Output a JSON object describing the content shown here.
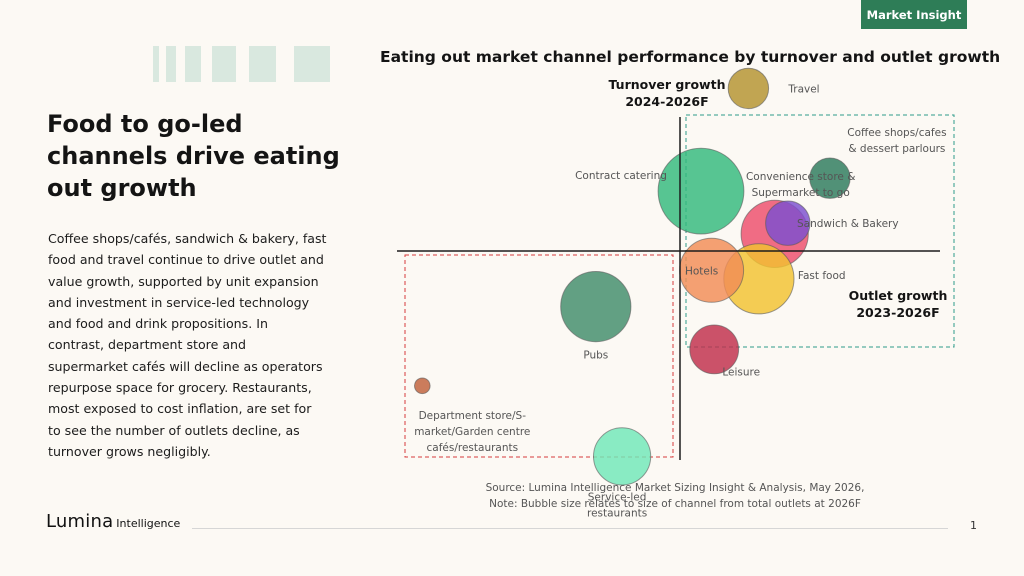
{
  "badge": "Market Insight",
  "headline_lines": [
    "Food to go-led",
    "channels drive eating",
    "out growth"
  ],
  "body_lines": [
    "Coffee shops/cafés, sandwich & bakery, fast",
    "food and travel continue to drive outlet and",
    "value growth, supported by unit expansion",
    "and investment in service-led technology",
    "and food and drink propositions. In",
    "contrast, department store and",
    "supermarket cafés will decline as operators",
    "repurpose space for grocery. Restaurants,",
    "most exposed to cost inflation, are set for",
    "to see the number of outlets decline, as",
    "turnover grows negligibly."
  ],
  "source_lines": [
    "Source: Lumina Intelligence Market Sizing Insight & Analysis, May 2026,",
    "Note: Bubble size relates to size of channel from total outlets at 2026F"
  ],
  "logo": {
    "main": "Lumina",
    "sub": "Intelligence"
  },
  "page_number": "1",
  "chart_data": {
    "type": "scatter",
    "title": "Eating out market channel performance by turnover and outlet growth",
    "ylabel_lines": [
      "Turnover growth",
      "2024-2026F"
    ],
    "xlabel_lines": [
      "Outlet growth",
      "2023-2026F"
    ],
    "xlim": [
      -1,
      1
    ],
    "ylim": [
      -1,
      1
    ],
    "grid": false,
    "points": [
      {
        "name": "Travel",
        "x": 0.26,
        "y": 0.76,
        "size": 0.4,
        "color": "#b3922e"
      },
      {
        "name": "Contract catering",
        "x": 0.08,
        "y": 0.28,
        "size": 1.8,
        "color": "#32b97c"
      },
      {
        "name": "Convenience store & Supermarket to go",
        "x": 0.36,
        "y": 0.08,
        "size": 1.1,
        "color": "#ed4d6b"
      },
      {
        "name": "Coffee shops/cafes & dessert parlours",
        "x": 0.57,
        "y": 0.34,
        "size": 0.4,
        "color": "#2b7a5c"
      },
      {
        "name": "Sandwich & Bakery",
        "x": 0.41,
        "y": 0.13,
        "size": 0.48,
        "color": "#7b4fcf"
      },
      {
        "name": "Fast food",
        "x": 0.3,
        "y": -0.13,
        "size": 1.2,
        "color": "#f2c230"
      },
      {
        "name": "Hotels",
        "x": 0.12,
        "y": -0.09,
        "size": 1.0,
        "color": "#f28c55"
      },
      {
        "name": "Leisure",
        "x": 0.13,
        "y": -0.46,
        "size": 0.58,
        "color": "#c02d4b"
      },
      {
        "name": "Pubs",
        "x": -0.32,
        "y": -0.26,
        "size": 1.2,
        "color": "#3f8c6a"
      },
      {
        "name": "Department store/S-market/Garden centre cafés/restaurants",
        "x": -0.98,
        "y": -0.63,
        "size": 0.06,
        "color": "#c0603a"
      },
      {
        "name": "Service-led restaurants",
        "x": -0.22,
        "y": -0.96,
        "size": 0.8,
        "color": "#6fe8b8"
      }
    ]
  }
}
